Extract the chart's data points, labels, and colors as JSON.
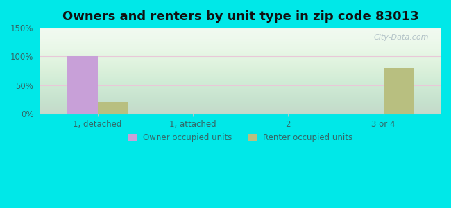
{
  "title": "Owners and renters by unit type in zip code 83013",
  "categories": [
    "1, detached",
    "1, attached",
    "2",
    "3 or 4"
  ],
  "owner_values": [
    100,
    0,
    0,
    0
  ],
  "renter_values": [
    20,
    0,
    0,
    80
  ],
  "owner_color": "#c8a0d8",
  "renter_color": "#b8bf80",
  "ylim": [
    0,
    150
  ],
  "yticks": [
    0,
    50,
    100,
    150
  ],
  "ytick_labels": [
    "0%",
    "50%",
    "100%",
    "150%"
  ],
  "background_color": "#00e8e8",
  "watermark": "City-Data.com",
  "legend_owner": "Owner occupied units",
  "legend_renter": "Renter occupied units",
  "bar_width": 0.32,
  "title_fontsize": 13
}
